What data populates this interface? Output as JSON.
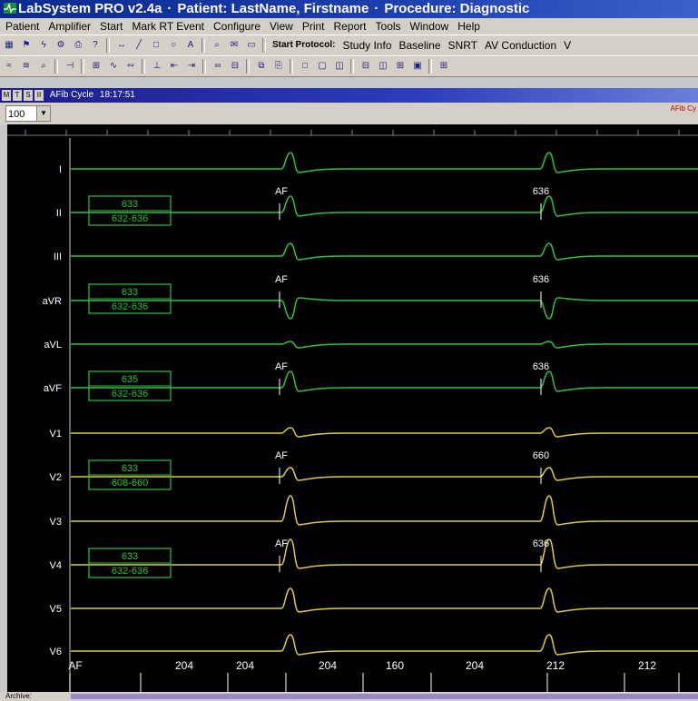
{
  "window": {
    "app_title": "LabSystem PRO v2.4a",
    "patient_label": "Patient: LastName, Firstname",
    "procedure_label": "Procedure: Diagnostic",
    "separator": "·"
  },
  "menu": [
    "Patient",
    "Amplifier",
    "Start",
    "Mark RT Event",
    "Configure",
    "View",
    "Print",
    "Report",
    "Tools",
    "Window",
    "Help"
  ],
  "toolbar1": {
    "start_protocol": "Start Protocol:",
    "protocols": [
      "Study Info",
      "Baseline",
      "SNRT",
      "AV Conduction",
      "V"
    ]
  },
  "status": {
    "mode_buttons": [
      "M",
      "T",
      "S",
      "II"
    ],
    "cycle_label": "AFib Cycle",
    "time": "18:17:51"
  },
  "zoom": {
    "value": "100",
    "marker": "AFib Cy"
  },
  "leads": [
    {
      "name": "I",
      "color": "#30c040"
    },
    {
      "name": "II",
      "color": "#30c040"
    },
    {
      "name": "III",
      "color": "#30c040"
    },
    {
      "name": "aVR",
      "color": "#30c040"
    },
    {
      "name": "aVL",
      "color": "#30c040"
    },
    {
      "name": "aVF",
      "color": "#30c040"
    },
    {
      "name": "V1",
      "color": "#d8cc40"
    },
    {
      "name": "V2",
      "color": "#d8cc40"
    },
    {
      "name": "V3",
      "color": "#d8cc40"
    },
    {
      "name": "V4",
      "color": "#d8cc40"
    },
    {
      "name": "V5",
      "color": "#d8cc40"
    },
    {
      "name": "V6",
      "color": "#d8cc40"
    }
  ],
  "measure_boxes": [
    {
      "lead": "II",
      "top": "633",
      "bottom": "632-636",
      "left_label": "AF",
      "right_label": "636"
    },
    {
      "lead": "aVR",
      "top": "633",
      "bottom": "632-636",
      "left_label": "AF",
      "right_label": "636"
    },
    {
      "lead": "aVF",
      "top": "635",
      "bottom": "632-636",
      "left_label": "AF",
      "right_label": "636"
    },
    {
      "lead": "V2",
      "top": "633",
      "bottom": "608-660",
      "left_label": "AF",
      "right_label": "660"
    },
    {
      "lead": "V4",
      "top": "633",
      "bottom": "632-636",
      "left_label": "AF",
      "right_label": "636"
    }
  ],
  "bottom_intervals": [
    "AF",
    "204",
    "204",
    "204",
    "160",
    "204",
    "212",
    "212"
  ],
  "archive_label": "Archive:",
  "colors": {
    "green_trace": "#30c040",
    "yellow_trace": "#d8cc40",
    "box": "#30c040",
    "label": "#ffffff",
    "plot_bg": "#000000"
  }
}
